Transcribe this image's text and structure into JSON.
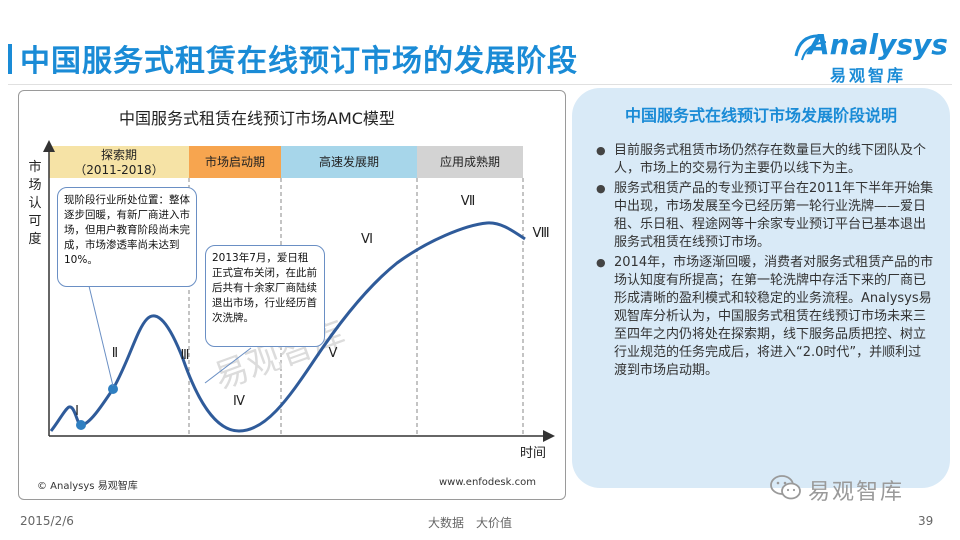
{
  "page_title": "中国服务式租赁在线预订市场的发展阶段",
  "logo": {
    "name": "Analysys",
    "cn": "易观智库"
  },
  "diagram": {
    "title": "中国服务式租赁在线预订市场AMC模型",
    "y_axis_label": [
      "市",
      "场",
      "认",
      "可",
      "度"
    ],
    "x_axis_label": "时间",
    "stages": [
      {
        "label": "探索期",
        "sub": "（2011-2018）",
        "color": "#f6e3a6"
      },
      {
        "label": "市场启动期",
        "sub": "",
        "color": "#f7a54f"
      },
      {
        "label": "高速发展期",
        "sub": "",
        "color": "#a7d6ea"
      },
      {
        "label": "应用成熟期",
        "sub": "",
        "color": "#d3d3d3"
      }
    ],
    "phase_markers": [
      "Ⅰ",
      "Ⅱ",
      "Ⅲ",
      "Ⅳ",
      "Ⅴ",
      "Ⅵ",
      "Ⅶ",
      "Ⅷ"
    ],
    "note_1": "现阶段行业所处位置：整体逐步回暖，有新厂商进入市场，但用户教育阶段尚未完成，市场渗透率尚未达到10%。",
    "note_2": "2013年7月，爱日租正式宣布关闭，在此前后共有十余家厂商陆续退出市场，行业经历首次洗牌。",
    "credit": "© Analysys 易观智库",
    "website": "www.enfodesk.com",
    "watermark": "易观智库",
    "colors": {
      "curve": "#2f5b9a",
      "accent": "#1a8bd6"
    }
  },
  "panel": {
    "title": "中国服务式在线预订市场发展阶段说明",
    "bullets": [
      "目前服务式租赁市场仍然存在数量巨大的线下团队及个人，市场上的交易行为主要仍以线下为主。",
      "服务式租赁产品的专业预订平台在2011年下半年开始集中出现，市场发展至今已经历第一轮行业洗牌——爱日租、乐日租、程途网等十余家专业预订平台已基本退出服务式租赁在线预订市场。",
      "2014年，市场逐渐回暖，消费者对服务式租赁产品的市场认知度有所提高；在第一轮洗牌中存活下来的厂商已形成清晰的盈利模式和较稳定的业务流程。Analysys易观智库分析认为，中国服务式租赁在线预订市场未来三至四年之内仍将处在探索期，线下服务品质把控、树立行业规范的任务完成后，将进入“2.0时代”，并顺利过渡到市场启动期。"
    ]
  },
  "wechat_label": "易观智库",
  "footer": {
    "date": "2015/2/6",
    "slogan": "大数据　大价值",
    "page": "39"
  }
}
